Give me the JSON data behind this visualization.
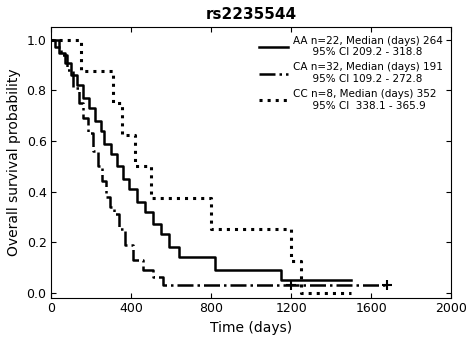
{
  "title": "rs2235544",
  "xlabel": "Time (days)",
  "ylabel": "Overall survival probability",
  "xlim": [
    0,
    2000
  ],
  "ylim": [
    -0.02,
    1.05
  ],
  "xticks": [
    0,
    400,
    800,
    1200,
    1600,
    2000
  ],
  "yticks": [
    0,
    0.2,
    0.4,
    0.6,
    0.8,
    1.0
  ],
  "legend": [
    {
      "label": "AA n=22, Median (days) 264\n      95% CI 209.2 - 318.8",
      "linestyle": "solid",
      "color": "black",
      "linewidth": 1.8
    },
    {
      "label": "CA n=32, Median (days) 191\n      95% CI 109.2 - 272.8",
      "linestyle": "dashdot",
      "color": "black",
      "linewidth": 1.8
    },
    {
      "label": "CC n=8, Median (days) 352\n      95% CI  338.1 - 365.9",
      "linestyle": "dotted",
      "color": "black",
      "linewidth": 2.2
    }
  ],
  "AA": {
    "times": [
      0,
      40,
      70,
      100,
      130,
      160,
      190,
      220,
      250,
      264,
      300,
      330,
      360,
      390,
      430,
      470,
      510,
      550,
      590,
      640,
      700,
      760,
      820,
      900,
      1000,
      1100,
      1150,
      1200,
      1500
    ],
    "surv": [
      1.0,
      0.95,
      0.91,
      0.86,
      0.82,
      0.77,
      0.73,
      0.68,
      0.64,
      0.59,
      0.55,
      0.5,
      0.45,
      0.41,
      0.36,
      0.32,
      0.27,
      0.23,
      0.18,
      0.14,
      0.14,
      0.14,
      0.09,
      0.09,
      0.09,
      0.09,
      0.05,
      0.05,
      0.05
    ],
    "censor_times": [],
    "censor_surv": []
  },
  "CA": {
    "times": [
      0,
      20,
      50,
      80,
      110,
      140,
      160,
      185,
      210,
      235,
      255,
      275,
      295,
      315,
      340,
      370,
      410,
      460,
      510,
      560,
      620,
      680,
      740,
      800,
      900,
      1050,
      1200,
      1500,
      1680
    ],
    "surv": [
      1.0,
      0.97,
      0.94,
      0.88,
      0.81,
      0.75,
      0.69,
      0.63,
      0.56,
      0.5,
      0.44,
      0.38,
      0.34,
      0.31,
      0.25,
      0.19,
      0.13,
      0.09,
      0.06,
      0.03,
      0.03,
      0.03,
      0.03,
      0.03,
      0.03,
      0.03,
      0.03,
      0.03,
      0.03
    ],
    "censor_times": [
      1200,
      1680
    ],
    "censor_surv": [
      0.03,
      0.03
    ]
  },
  "CC": {
    "times": [
      0,
      100,
      150,
      200,
      260,
      310,
      352,
      420,
      500,
      600,
      700,
      800,
      900,
      1000,
      1100,
      1200,
      1250,
      1500
    ],
    "surv": [
      1.0,
      1.0,
      0.875,
      0.875,
      0.875,
      0.75,
      0.625,
      0.5,
      0.375,
      0.375,
      0.375,
      0.25,
      0.25,
      0.25,
      0.25,
      0.125,
      0.0,
      0.0
    ],
    "censor_times": [],
    "censor_surv": []
  }
}
